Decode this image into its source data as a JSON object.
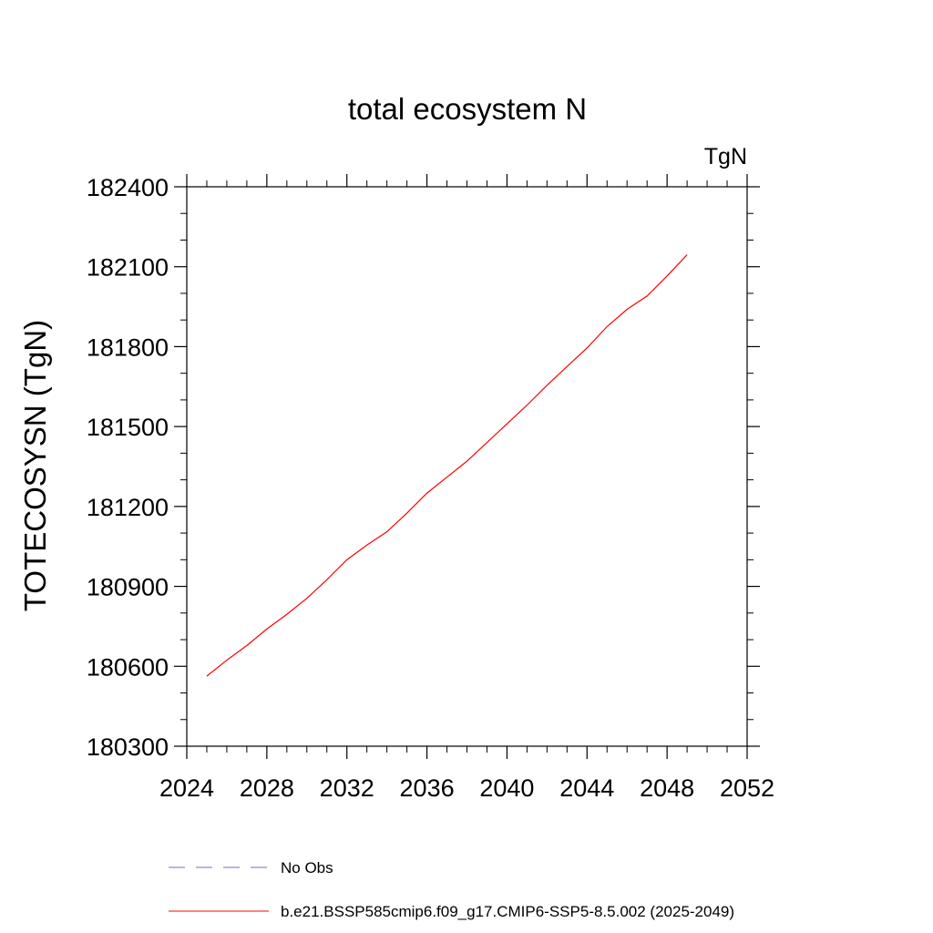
{
  "chart_data": {
    "type": "line",
    "title": "total ecosystem N",
    "units_label": "TgN",
    "xlabel": "",
    "ylabel": "TOTECOSYSN  (TgN)",
    "xlim": [
      2024,
      2052
    ],
    "ylim": [
      180300,
      182400
    ],
    "x_ticks": [
      2024,
      2028,
      2032,
      2036,
      2040,
      2044,
      2048,
      2052
    ],
    "y_ticks": [
      180300,
      180600,
      180900,
      181200,
      181500,
      181800,
      182100,
      182400
    ],
    "grid": false,
    "legend_position": "bottom",
    "series": [
      {
        "name": "b.e21.BSSP585cmip6.f09_g17.CMIP6-SSP5-8.5.002 (2025-2049)",
        "color": "#ff0000",
        "dash": "solid",
        "x": [
          2025,
          2026,
          2027,
          2028,
          2029,
          2030,
          2031,
          2032,
          2033,
          2034,
          2035,
          2036,
          2037,
          2038,
          2039,
          2040,
          2041,
          2042,
          2043,
          2044,
          2045,
          2046,
          2047,
          2048,
          2049
        ],
        "values": [
          180563,
          180623,
          180678,
          180740,
          180795,
          180855,
          180925,
          181000,
          181055,
          181105,
          181175,
          181250,
          181310,
          181370,
          181440,
          181510,
          181580,
          181655,
          181725,
          181795,
          181875,
          181940,
          181990,
          182065,
          182145
        ]
      }
    ],
    "legend": [
      {
        "label": "No Obs",
        "color": "#6b6bd6",
        "dash": "dashed"
      },
      {
        "label": "b.e21.BSSP585cmip6.f09_g17.CMIP6-SSP5-8.5.002 (2025-2049)",
        "color": "#ff0000",
        "dash": "solid"
      }
    ]
  }
}
